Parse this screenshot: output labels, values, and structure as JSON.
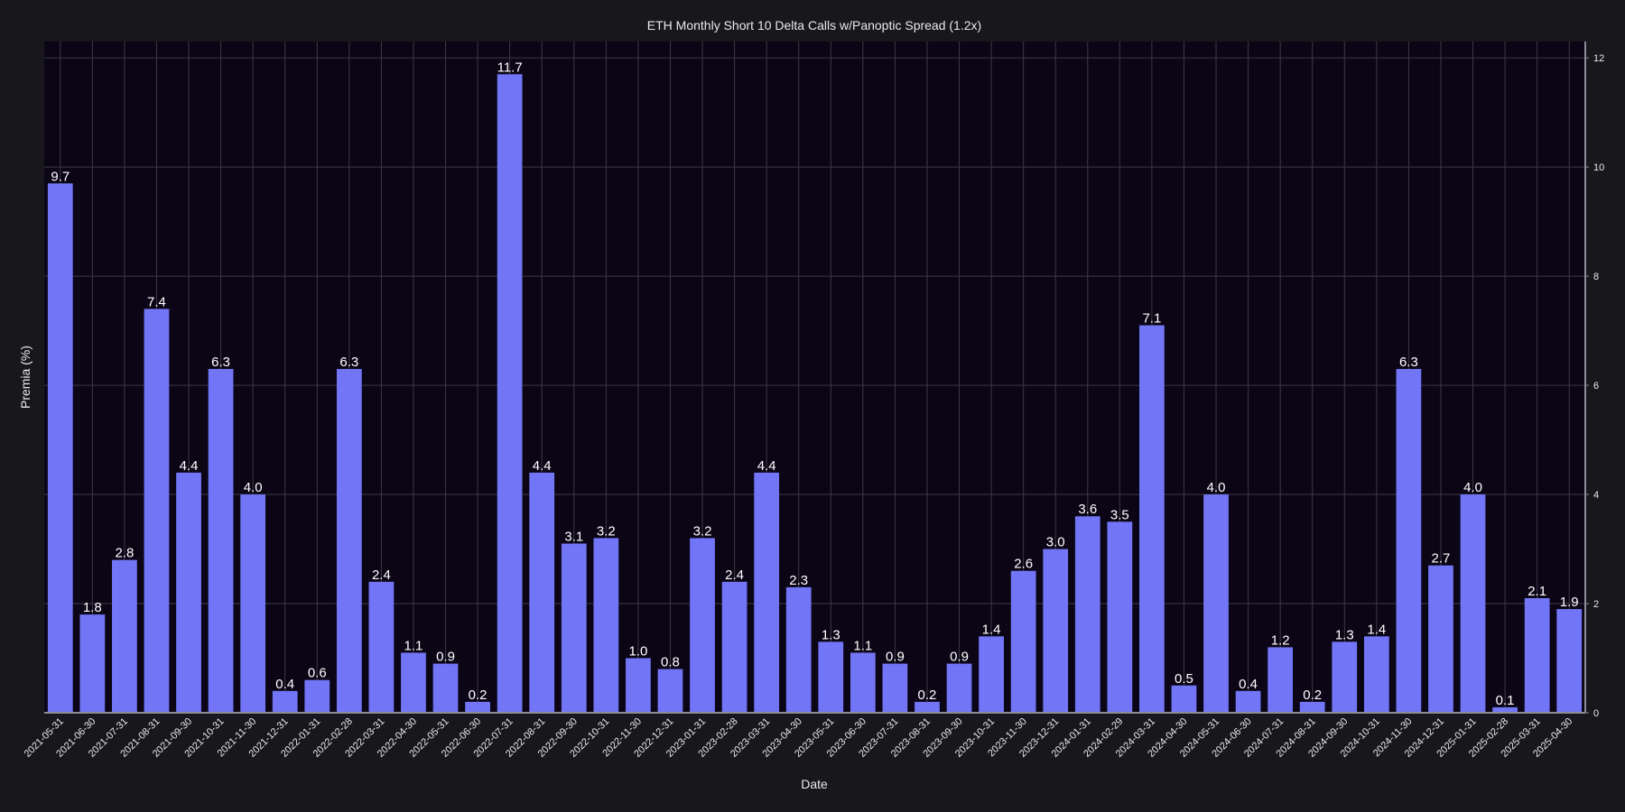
{
  "chart_data": {
    "type": "bar",
    "title": "ETH Monthly Short 10 Delta Calls w/Panoptic Spread (1.2x)",
    "xlabel": "Date",
    "ylabel": "Premia (%)",
    "ylim": [
      0,
      12.3
    ],
    "yticks": [
      0,
      2,
      4,
      6,
      8,
      10,
      12
    ],
    "y_axis_side": "right",
    "grid": true,
    "categories": [
      "2021-05-31",
      "2021-06-30",
      "2021-07-31",
      "2021-08-31",
      "2021-09-30",
      "2021-10-31",
      "2021-11-30",
      "2021-12-31",
      "2022-01-31",
      "2022-02-28",
      "2022-03-31",
      "2022-04-30",
      "2022-05-31",
      "2022-06-30",
      "2022-07-31",
      "2022-08-31",
      "2022-09-30",
      "2022-10-31",
      "2022-11-30",
      "2022-12-31",
      "2023-01-31",
      "2023-02-28",
      "2023-03-31",
      "2023-04-30",
      "2023-05-31",
      "2023-06-30",
      "2023-07-31",
      "2023-08-31",
      "2023-09-30",
      "2023-10-31",
      "2023-11-30",
      "2023-12-31",
      "2024-01-31",
      "2024-02-29",
      "2024-03-31",
      "2024-04-30",
      "2024-05-31",
      "2024-06-30",
      "2024-07-31",
      "2024-08-31",
      "2024-09-30",
      "2024-10-31",
      "2024-11-30",
      "2024-12-31",
      "2025-01-31",
      "2025-02-28",
      "2025-03-31",
      "2025-04-30"
    ],
    "values": [
      9.7,
      1.8,
      2.8,
      7.4,
      4.4,
      6.3,
      4.0,
      0.4,
      0.6,
      6.3,
      2.4,
      1.1,
      0.9,
      0.2,
      11.7,
      4.4,
      3.1,
      3.2,
      1.0,
      0.8,
      3.2,
      2.4,
      4.4,
      2.3,
      1.3,
      1.1,
      0.9,
      0.2,
      0.9,
      1.4,
      2.6,
      3.0,
      3.6,
      3.5,
      7.1,
      0.5,
      4.0,
      0.4,
      1.2,
      0.2,
      1.3,
      1.4,
      6.3,
      2.7,
      4.0,
      0.1,
      2.1,
      1.9
    ],
    "value_labels": [
      "9.7",
      "1.8",
      "2.8",
      "7.4",
      "4.4",
      "6.3",
      "4.0",
      "0.4",
      "0.6",
      "6.3",
      "2.4",
      "1.1",
      "0.9",
      "0.2",
      "11.7",
      "4.4",
      "3.1",
      "3.2",
      "1.0",
      "0.8",
      "3.2",
      "2.4",
      "4.4",
      "2.3",
      "1.3",
      "1.1",
      "0.9",
      "0.2",
      "0.9",
      "1.4",
      "2.6",
      "3.0",
      "3.6",
      "3.5",
      "7.1",
      "0.5",
      "4.0",
      "0.4",
      "1.2",
      "0.2",
      "1.3",
      "1.4",
      "6.3",
      "2.7",
      "4.0",
      "0.1",
      "2.1",
      "1.9"
    ],
    "colors": {
      "background": "#18171c",
      "plot_background": "#0b0516",
      "bar": "#7276f6",
      "grid": "#3d3a48",
      "axis": "#8c8c96",
      "text": "#e8e8ee"
    }
  }
}
